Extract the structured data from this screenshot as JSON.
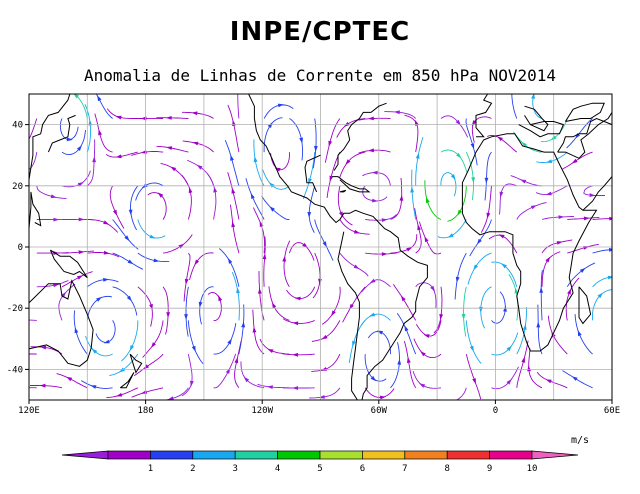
{
  "header": {
    "title": "INPE/CPTEC",
    "subtitle": "Anomalia de Linhas de Corrente em 850 hPa NOV2014"
  },
  "map": {
    "region": "global",
    "lat_range": [
      -50,
      50
    ],
    "lon_range": [
      120,
      420
    ],
    "lat_ticks": [
      {
        "label": "40",
        "lat": 40
      },
      {
        "label": "20",
        "lat": 20
      },
      {
        "label": "0",
        "lat": 0
      },
      {
        "label": "-20",
        "lat": -20
      },
      {
        "label": "-40",
        "lat": -40
      }
    ],
    "lon_ticks": [
      {
        "label": "120E",
        "lon": 120
      },
      {
        "label": "180",
        "lon": 180
      },
      {
        "label": "120W",
        "lon": 240
      },
      {
        "label": "60W",
        "lon": 300
      },
      {
        "label": "0",
        "lon": 360
      },
      {
        "label": "60E",
        "lon": 420
      }
    ]
  },
  "colorbar": {
    "unit": "m/s",
    "labels": [
      "1",
      "2",
      "3",
      "4",
      "5",
      "6",
      "7",
      "8",
      "9",
      "10"
    ],
    "colors": [
      "#9a1ddb",
      "#a000c8",
      "#2540f0",
      "#18a8f0",
      "#20d0a0",
      "#00c800",
      "#a8e030",
      "#f0c020",
      "#f08020",
      "#f03030",
      "#e8008c",
      "#f060c0"
    ]
  }
}
